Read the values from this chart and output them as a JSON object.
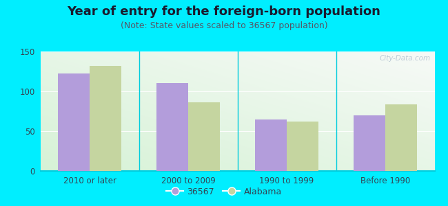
{
  "title": "Year of entry for the foreign-born population",
  "subtitle": "(Note: State values scaled to 36567 population)",
  "categories": [
    "2010 or later",
    "2000 to 2009",
    "1990 to 1999",
    "Before 1990"
  ],
  "values_36567": [
    122,
    110,
    65,
    70
  ],
  "values_alabama": [
    132,
    86,
    62,
    84
  ],
  "bar_color_36567": "#b39ddb",
  "bar_color_alabama": "#c5d5a0",
  "background_outer": "#00eeff",
  "background_chart_topleft": "#e8f5e8",
  "background_chart_topright": "#f8f8f8",
  "ylim": [
    0,
    150
  ],
  "yticks": [
    0,
    50,
    100,
    150
  ],
  "legend_label_1": "36567",
  "legend_label_2": "Alabama",
  "bar_width": 0.32,
  "watermark": "City-Data.com",
  "title_fontsize": 13,
  "subtitle_fontsize": 9,
  "tick_fontsize": 8.5,
  "legend_fontsize": 9,
  "title_color": "#1a1a2e",
  "subtitle_color": "#555566",
  "tick_label_color": "#334455"
}
